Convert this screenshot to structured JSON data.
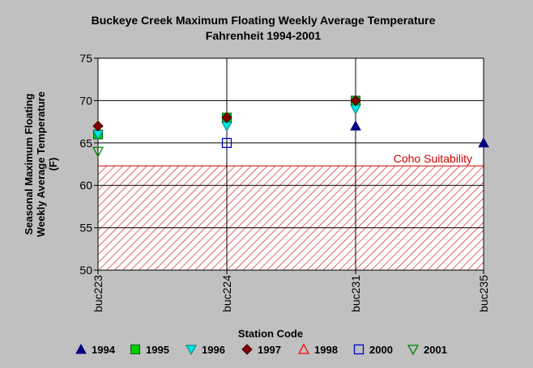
{
  "chart_data": {
    "type": "scatter",
    "title": "Buckeye Creek Maximum Floating Weekly Average Temperature",
    "subtitle": "Fahrenheit  1994-2001",
    "xlabel": "Station Code",
    "ylabel": [
      "Seasonal Maximum Floating",
      "Weekly Average Temperature",
      "(F)"
    ],
    "categories": [
      "buc223",
      "buc224",
      "buc231",
      "buc235"
    ],
    "ylim": [
      50,
      75
    ],
    "yticks": [
      "50",
      "55",
      "60",
      "65",
      "70",
      "75"
    ],
    "grid": true,
    "legend_position": "bottom",
    "band": {
      "label": "Coho Suitability",
      "from": 50,
      "to": 62.3,
      "color": "#cc0000"
    },
    "series": [
      {
        "name": "1994",
        "marker": "triangle-up",
        "fill": "#000080",
        "stroke": "#000080",
        "values": [
          null,
          null,
          67,
          65
        ]
      },
      {
        "name": "1995",
        "marker": "square",
        "fill": "#00cc00",
        "stroke": "#006600",
        "values": [
          66,
          68,
          70,
          null
        ]
      },
      {
        "name": "1996",
        "marker": "triangle-down",
        "fill": "#00e5e5",
        "stroke": "#008080",
        "values": [
          66,
          67,
          69,
          null
        ]
      },
      {
        "name": "1997",
        "marker": "diamond",
        "fill": "#800000",
        "stroke": "#400000",
        "values": [
          67,
          68,
          70,
          null
        ]
      },
      {
        "name": "1998",
        "marker": "triangle-up-open",
        "fill": "none",
        "stroke": "#ff0000",
        "values": [
          null,
          null,
          null,
          null
        ]
      },
      {
        "name": "2000",
        "marker": "square-open",
        "fill": "none",
        "stroke": "#0000cc",
        "values": [
          null,
          65,
          null,
          null
        ]
      },
      {
        "name": "2001",
        "marker": "triangle-down-open",
        "fill": "none",
        "stroke": "#008000",
        "values": [
          64,
          null,
          null,
          null
        ]
      }
    ]
  }
}
